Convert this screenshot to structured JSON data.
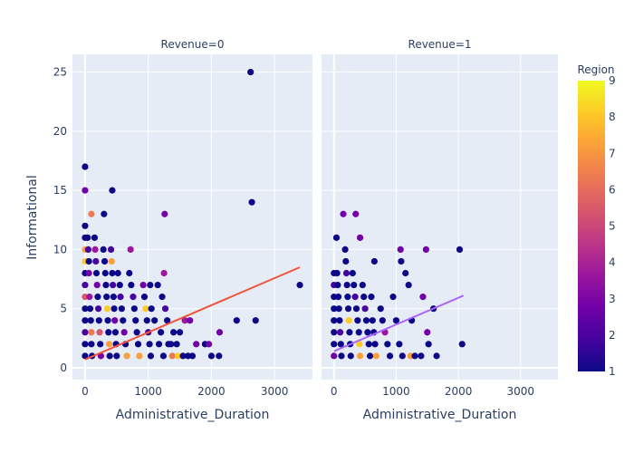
{
  "chart_data": {
    "type": "scatter",
    "x_axis_title": "Administrative_Duration",
    "y_axis_title": "Informational",
    "colorbar_title": "Region",
    "colorscale": [
      "#0d0887",
      "#46039f",
      "#7201a8",
      "#9c179e",
      "#bd3786",
      "#d8576b",
      "#ed7953",
      "#fb9f3a",
      "#fdca26",
      "#f0f921"
    ],
    "background_color": "#e5ecf6",
    "grid_color": "#ffffff",
    "xlim": [
      -200,
      3600
    ],
    "ylim": [
      -1,
      26.5
    ],
    "x_ticks": [
      0,
      1000,
      2000,
      3000
    ],
    "x_tick_labels": [
      "0",
      "1000",
      "2000",
      "3000"
    ],
    "y_ticks": [
      0,
      5,
      10,
      15,
      20,
      25
    ],
    "y_tick_labels": [
      "0",
      "5",
      "10",
      "15",
      "20",
      "25"
    ],
    "colorbar_range": [
      1,
      9
    ],
    "colorbar_ticks": [
      1,
      2,
      3,
      4,
      5,
      6,
      7,
      8,
      9
    ],
    "colorbar_tick_labels": [
      "1",
      "2",
      "3",
      "4",
      "5",
      "6",
      "7",
      "8",
      "9"
    ],
    "panels": [
      {
        "title": "Revenue=0",
        "trendline": {
          "color": "#ef553b",
          "x": [
            0,
            3400
          ],
          "y": [
            0.7,
            8.5
          ]
        },
        "points": [
          [
            0,
            17,
            1
          ],
          [
            0,
            15,
            3
          ],
          [
            0,
            12,
            1
          ],
          [
            0,
            11,
            1
          ],
          [
            0,
            10,
            7
          ],
          [
            0,
            9,
            8
          ],
          [
            0,
            8,
            1
          ],
          [
            0,
            7,
            2
          ],
          [
            0,
            6,
            5
          ],
          [
            0,
            5,
            1
          ],
          [
            0,
            4,
            1
          ],
          [
            0,
            3,
            2
          ],
          [
            0,
            2,
            1
          ],
          [
            0,
            1,
            1
          ],
          [
            40,
            11,
            1
          ],
          [
            50,
            10,
            2
          ],
          [
            60,
            9,
            1
          ],
          [
            60,
            8,
            3
          ],
          [
            70,
            6,
            4
          ],
          [
            80,
            5,
            1
          ],
          [
            90,
            4,
            1
          ],
          [
            100,
            3,
            6
          ],
          [
            100,
            2,
            1
          ],
          [
            110,
            1,
            1
          ],
          [
            100,
            13,
            6
          ],
          [
            150,
            11,
            1
          ],
          [
            160,
            10,
            4
          ],
          [
            170,
            9,
            2
          ],
          [
            180,
            8,
            1
          ],
          [
            190,
            7,
            3
          ],
          [
            200,
            6,
            1
          ],
          [
            210,
            5,
            2
          ],
          [
            220,
            4,
            1
          ],
          [
            230,
            3,
            5
          ],
          [
            240,
            2,
            1
          ],
          [
            250,
            1,
            3
          ],
          [
            300,
            13,
            1
          ],
          [
            290,
            10,
            1
          ],
          [
            310,
            9,
            1
          ],
          [
            320,
            8,
            1
          ],
          [
            330,
            7,
            1
          ],
          [
            340,
            6,
            1
          ],
          [
            350,
            5,
            8
          ],
          [
            360,
            4,
            1
          ],
          [
            370,
            3,
            1
          ],
          [
            380,
            2,
            7
          ],
          [
            390,
            1,
            1
          ],
          [
            430,
            15,
            1
          ],
          [
            410,
            10,
            2
          ],
          [
            420,
            9,
            7
          ],
          [
            430,
            8,
            1
          ],
          [
            440,
            7,
            2
          ],
          [
            450,
            6,
            1
          ],
          [
            460,
            5,
            1
          ],
          [
            470,
            4,
            3
          ],
          [
            480,
            3,
            1
          ],
          [
            490,
            2,
            1
          ],
          [
            500,
            1,
            1
          ],
          [
            520,
            8,
            1
          ],
          [
            550,
            7,
            1
          ],
          [
            560,
            6,
            2
          ],
          [
            580,
            5,
            1
          ],
          [
            600,
            4,
            1
          ],
          [
            620,
            3,
            3
          ],
          [
            640,
            2,
            1
          ],
          [
            660,
            1,
            7
          ],
          [
            720,
            10,
            4
          ],
          [
            700,
            8,
            1
          ],
          [
            730,
            7,
            1
          ],
          [
            760,
            6,
            2
          ],
          [
            780,
            5,
            1
          ],
          [
            800,
            4,
            1
          ],
          [
            820,
            3,
            1
          ],
          [
            840,
            2,
            1
          ],
          [
            860,
            1,
            7
          ],
          [
            920,
            7,
            3
          ],
          [
            940,
            6,
            1
          ],
          [
            960,
            5,
            8
          ],
          [
            980,
            4,
            1
          ],
          [
            1000,
            3,
            2
          ],
          [
            1020,
            2,
            1
          ],
          [
            1040,
            1,
            1
          ],
          [
            1030,
            7,
            1
          ],
          [
            1050,
            5,
            1
          ],
          [
            1100,
            4,
            1
          ],
          [
            1150,
            7,
            1
          ],
          [
            1170,
            2,
            1
          ],
          [
            1200,
            3,
            1
          ],
          [
            1220,
            6,
            1
          ],
          [
            1240,
            1,
            1
          ],
          [
            1260,
            13,
            3
          ],
          [
            1250,
            8,
            4
          ],
          [
            1270,
            5,
            2
          ],
          [
            1300,
            4,
            1
          ],
          [
            1320,
            2,
            1
          ],
          [
            1360,
            2,
            1
          ],
          [
            1380,
            1,
            6
          ],
          [
            1400,
            3,
            1
          ],
          [
            1450,
            2,
            1
          ],
          [
            1470,
            1,
            8
          ],
          [
            1500,
            3,
            1
          ],
          [
            1550,
            1,
            1
          ],
          [
            1580,
            4,
            4
          ],
          [
            1630,
            1,
            1
          ],
          [
            1660,
            4,
            3
          ],
          [
            1700,
            1,
            1
          ],
          [
            1760,
            2,
            3
          ],
          [
            1900,
            2,
            1
          ],
          [
            1960,
            2,
            3
          ],
          [
            2000,
            1,
            1
          ],
          [
            2120,
            1,
            1
          ],
          [
            2130,
            3,
            3
          ],
          [
            2400,
            4,
            1
          ],
          [
            2620,
            25,
            1
          ],
          [
            2640,
            14,
            1
          ],
          [
            2700,
            4,
            1
          ],
          [
            3400,
            7,
            1
          ]
        ]
      },
      {
        "title": "Revenue=1",
        "trendline": {
          "color": "#ab63fa",
          "x": [
            0,
            2080
          ],
          "y": [
            1.4,
            6.1
          ]
        },
        "points": [
          [
            0,
            8,
            1
          ],
          [
            0,
            7,
            2
          ],
          [
            0,
            6,
            1
          ],
          [
            0,
            5,
            1
          ],
          [
            0,
            4,
            1
          ],
          [
            0,
            3,
            1
          ],
          [
            0,
            2,
            1
          ],
          [
            0,
            1,
            3
          ],
          [
            40,
            11,
            1
          ],
          [
            50,
            8,
            1
          ],
          [
            60,
            7,
            1
          ],
          [
            70,
            6,
            1
          ],
          [
            80,
            5,
            1
          ],
          [
            90,
            4,
            1
          ],
          [
            100,
            3,
            2
          ],
          [
            110,
            2,
            1
          ],
          [
            120,
            1,
            1
          ],
          [
            150,
            13,
            3
          ],
          [
            180,
            10,
            1
          ],
          [
            190,
            9,
            1
          ],
          [
            200,
            8,
            2
          ],
          [
            210,
            7,
            1
          ],
          [
            220,
            6,
            1
          ],
          [
            230,
            5,
            1
          ],
          [
            240,
            4,
            8
          ],
          [
            250,
            3,
            1
          ],
          [
            260,
            2,
            1
          ],
          [
            270,
            1,
            1
          ],
          [
            300,
            8,
            1
          ],
          [
            320,
            7,
            1
          ],
          [
            340,
            6,
            2
          ],
          [
            360,
            5,
            1
          ],
          [
            380,
            4,
            1
          ],
          [
            400,
            3,
            1
          ],
          [
            410,
            2,
            8
          ],
          [
            420,
            1,
            7
          ],
          [
            350,
            13,
            3
          ],
          [
            420,
            11,
            3
          ],
          [
            460,
            7,
            1
          ],
          [
            480,
            6,
            1
          ],
          [
            500,
            5,
            2
          ],
          [
            520,
            4,
            1
          ],
          [
            540,
            3,
            1
          ],
          [
            560,
            2,
            1
          ],
          [
            580,
            1,
            1
          ],
          [
            600,
            6,
            1
          ],
          [
            620,
            4,
            1
          ],
          [
            640,
            3,
            1
          ],
          [
            650,
            9,
            1
          ],
          [
            660,
            2,
            1
          ],
          [
            680,
            1,
            7
          ],
          [
            750,
            5,
            1
          ],
          [
            780,
            4,
            1
          ],
          [
            820,
            3,
            4
          ],
          [
            860,
            2,
            1
          ],
          [
            900,
            1,
            1
          ],
          [
            950,
            6,
            1
          ],
          [
            1000,
            4,
            1
          ],
          [
            1050,
            2,
            1
          ],
          [
            1070,
            10,
            3
          ],
          [
            1080,
            9,
            1
          ],
          [
            1100,
            1,
            1
          ],
          [
            1150,
            8,
            1
          ],
          [
            1200,
            7,
            1
          ],
          [
            1230,
            1,
            7
          ],
          [
            1250,
            4,
            1
          ],
          [
            1300,
            1,
            1
          ],
          [
            1400,
            1,
            1
          ],
          [
            1430,
            6,
            3
          ],
          [
            1480,
            10,
            3
          ],
          [
            1500,
            3,
            3
          ],
          [
            1520,
            2,
            1
          ],
          [
            1600,
            5,
            1
          ],
          [
            1650,
            1,
            1
          ],
          [
            2020,
            10,
            1
          ],
          [
            2060,
            2,
            1
          ]
        ]
      }
    ]
  }
}
